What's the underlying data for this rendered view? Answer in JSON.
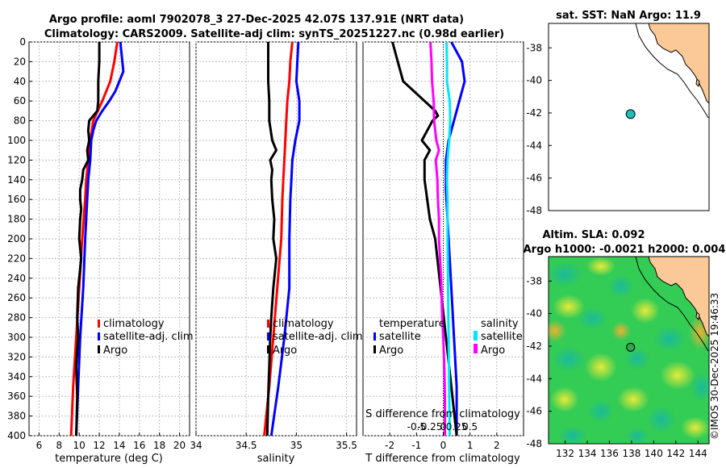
{
  "title_line1": "Argo profile: aoml 7902078_3 27-Dec-2025 42.07S 137.91E (NRT data)",
  "title_line2": "Climatology: CARS2009. Satellite-adj clim: synTS_20251227.nc (0.98d earlier)",
  "watermark": "©IMOS 30-Dec-2025 19:46:33",
  "colors": {
    "climatology": "#ff0000",
    "satellite": "#0000ff",
    "argo": "#000000",
    "sal_satellite": "#00e5ff",
    "sal_argo": "#ff00ff",
    "land": "#fbc898",
    "sla_green": "#33cc55"
  },
  "map_sst": {
    "title": "sat. SST: NaN Argo: 11.9"
  },
  "map_sla": {
    "title_line1": "Altim. SLA: 0.092",
    "title_line2": "Argo h1000: -0.0021 h2000: 0.004"
  },
  "chart_data": [
    {
      "id": "temperature",
      "type": "line",
      "xlabel": "temperature (deg C)",
      "ylabel": "",
      "xlim": [
        5,
        21
      ],
      "ylim": [
        400,
        0
      ],
      "xticks": [
        6,
        8,
        10,
        12,
        14,
        16,
        18,
        20
      ],
      "yticks": [
        0,
        20,
        40,
        60,
        80,
        100,
        120,
        140,
        160,
        180,
        200,
        220,
        240,
        260,
        280,
        300,
        320,
        340,
        360,
        380,
        400
      ],
      "legend": [
        "climatology",
        "satellite-adj. clim",
        "Argo"
      ],
      "series": [
        {
          "name": "climatology",
          "color": "#ff0000",
          "depth": [
            0,
            20,
            40,
            60,
            80,
            100,
            120,
            140,
            160,
            200,
            250,
            300,
            350,
            400
          ],
          "values": [
            13.8,
            13.5,
            13.1,
            12.3,
            11.4,
            11.1,
            10.9,
            10.7,
            10.6,
            10.3,
            10.0,
            9.7,
            9.4,
            9.2
          ]
        },
        {
          "name": "satellite-adj. clim",
          "color": "#0000ff",
          "depth": [
            0,
            20,
            30,
            50,
            60,
            70,
            80,
            90,
            100,
            120,
            140,
            160,
            200,
            250,
            300,
            350,
            400
          ],
          "values": [
            14.1,
            14.3,
            14.4,
            13.6,
            13.0,
            12.3,
            11.7,
            11.4,
            11.2,
            11.1,
            10.9,
            10.8,
            10.6,
            10.4,
            10.1,
            9.9,
            9.7
          ]
        },
        {
          "name": "Argo",
          "color": "#000000",
          "depth": [
            0,
            20,
            40,
            60,
            70,
            80,
            90,
            100,
            110,
            120,
            130,
            140,
            150,
            160,
            170,
            180,
            200,
            220,
            250,
            280,
            300,
            330,
            360,
            400
          ],
          "values": [
            12.0,
            12.0,
            11.9,
            11.9,
            11.8,
            11.0,
            10.9,
            11.0,
            10.8,
            10.9,
            10.4,
            10.3,
            10.1,
            10.1,
            10.2,
            10.1,
            10.0,
            10.2,
            9.9,
            9.8,
            9.9,
            9.7,
            9.8,
            9.7
          ]
        }
      ]
    },
    {
      "id": "salinity",
      "type": "line",
      "xlabel": "salinity",
      "ylabel": "",
      "xlim": [
        34,
        35.6
      ],
      "ylim": [
        400,
        0
      ],
      "xticks": [
        34,
        34.5,
        35,
        35.5
      ],
      "yticks": [
        0,
        20,
        40,
        60,
        80,
        100,
        120,
        140,
        160,
        180,
        200,
        220,
        240,
        260,
        280,
        300,
        320,
        340,
        360,
        380,
        400
      ],
      "legend": [
        "climatology",
        "satellite-adj. clim",
        "Argo"
      ],
      "series": [
        {
          "name": "climatology",
          "color": "#ff0000",
          "depth": [
            0,
            20,
            40,
            60,
            80,
            100,
            120,
            140,
            160,
            200,
            250,
            300,
            350,
            400
          ],
          "values": [
            34.96,
            34.94,
            34.93,
            34.91,
            34.9,
            34.89,
            34.88,
            34.87,
            34.86,
            34.85,
            34.81,
            34.77,
            34.73,
            34.68
          ]
        },
        {
          "name": "satellite-adj. clim",
          "color": "#0000ff",
          "depth": [
            0,
            20,
            40,
            60,
            80,
            100,
            120,
            140,
            160,
            200,
            250,
            300,
            350,
            400
          ],
          "values": [
            35.02,
            35.01,
            35.0,
            35.03,
            35.03,
            34.99,
            34.96,
            34.95,
            34.94,
            34.93,
            34.93,
            34.88,
            34.82,
            34.75
          ]
        },
        {
          "name": "Argo",
          "color": "#000000",
          "depth": [
            0,
            20,
            40,
            60,
            80,
            100,
            110,
            120,
            130,
            140,
            160,
            180,
            200,
            220,
            250,
            280,
            300,
            330,
            360,
            400
          ],
          "values": [
            34.72,
            34.72,
            34.72,
            34.73,
            34.73,
            34.76,
            34.8,
            34.74,
            34.76,
            34.75,
            34.76,
            34.78,
            34.77,
            34.8,
            34.77,
            34.75,
            34.74,
            34.73,
            34.72,
            34.71
          ]
        }
      ]
    },
    {
      "id": "difference",
      "type": "line",
      "xlabel": "T difference from climatology",
      "xlabel_top": "S difference from climatology",
      "xlim": [
        -3,
        3
      ],
      "ylim": [
        400,
        0
      ],
      "xticks": [
        -2,
        -1,
        0,
        1,
        2
      ],
      "xticks_S_values": [
        -0.5,
        -0.25,
        0,
        0.25,
        0.5
      ],
      "xticks_S": [
        "-0.5",
        "-0.25",
        "0",
        "0.25",
        "0.5"
      ],
      "yticks": [
        0,
        20,
        40,
        60,
        80,
        100,
        120,
        140,
        160,
        180,
        200,
        220,
        240,
        260,
        280,
        300,
        320,
        340,
        360,
        380,
        400
      ],
      "legend_temperature": {
        "heading": "temperature",
        "items": [
          "satellite",
          "Argo"
        ]
      },
      "legend_salinity": {
        "heading": "salinity",
        "items": [
          "satellite",
          "Argo"
        ]
      },
      "series": [
        {
          "name": "temperature satellite",
          "color": "#0000ff",
          "depth": [
            0,
            20,
            40,
            60,
            80,
            100,
            120,
            150,
            200,
            250,
            300,
            350,
            400
          ],
          "values": [
            0.3,
            0.7,
            0.8,
            0.6,
            0.4,
            0.2,
            0.1,
            0.1,
            0.2,
            0.3,
            0.4,
            0.5,
            0.5
          ]
        },
        {
          "name": "temperature Argo",
          "color": "#000000",
          "depth": [
            0,
            20,
            40,
            60,
            70,
            75,
            80,
            90,
            100,
            110,
            120,
            140,
            160,
            180,
            200,
            250,
            300,
            350,
            400
          ],
          "values": [
            -1.9,
            -1.7,
            -1.5,
            -0.7,
            -0.3,
            -0.2,
            -0.4,
            -0.6,
            -0.8,
            -0.5,
            -0.7,
            -0.7,
            -0.6,
            -0.5,
            -0.3,
            -0.1,
            0.1,
            0.3,
            0.5
          ]
        },
        {
          "name": "salinity satellite",
          "color": "#00e5ff",
          "depth": [
            0,
            20,
            40,
            60,
            80,
            100,
            120,
            140,
            160,
            200,
            250,
            300,
            350,
            400
          ],
          "values": [
            0.06,
            0.07,
            0.07,
            0.12,
            0.13,
            0.11,
            0.08,
            0.07,
            0.08,
            0.08,
            0.09,
            0.1,
            0.11,
            0.12
          ]
        },
        {
          "name": "salinity Argo",
          "color": "#ff00ff",
          "depth": [
            0,
            20,
            40,
            60,
            80,
            100,
            110,
            120,
            140,
            160,
            180,
            200,
            240,
            280,
            300,
            330,
            360,
            400
          ],
          "values": [
            -0.24,
            -0.22,
            -0.21,
            -0.18,
            -0.17,
            -0.13,
            -0.08,
            -0.14,
            -0.11,
            -0.1,
            -0.08,
            -0.08,
            -0.04,
            -0.02,
            0.0,
            0.02,
            0.03,
            0.03
          ]
        }
      ]
    },
    {
      "id": "sst_map",
      "type": "scatter",
      "xlim": [
        130.5,
        145
      ],
      "ylim": [
        -48,
        -36.5
      ],
      "xticks": [],
      "yticks": [
        -38,
        -40,
        -42,
        -44,
        -46,
        -48
      ],
      "point": {
        "lon": 137.91,
        "lat": -42.07,
        "color": "#1fbfb8"
      }
    },
    {
      "id": "sla_map",
      "type": "heatmap",
      "xlim": [
        130.5,
        145
      ],
      "ylim": [
        -48,
        -36.5
      ],
      "xticks": [
        132,
        134,
        136,
        138,
        140,
        142,
        144
      ],
      "yticks": [
        -38,
        -40,
        -42,
        -44,
        -46,
        -48
      ],
      "point": {
        "lon": 137.91,
        "lat": -42.07,
        "color": "#2ea84a"
      }
    }
  ]
}
